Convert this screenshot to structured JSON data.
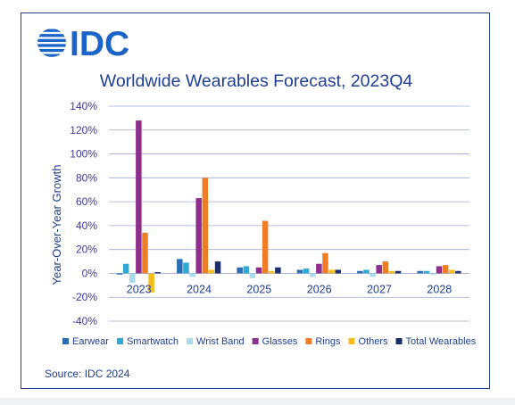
{
  "logo": {
    "text": "IDC"
  },
  "colors": {
    "brand": "#1f3f95",
    "logo_blue": "#1b64c8",
    "axis_text": "#3a3aa0",
    "grid": "#9aa8d8"
  },
  "chart_data": {
    "type": "bar",
    "title": "Worldwide Wearables Forecast, 2023Q4",
    "xlabel": "",
    "ylabel": "Year-Over-Year Growth",
    "ylim": [
      -40,
      140
    ],
    "yticks": [
      -40,
      -20,
      0,
      20,
      40,
      60,
      80,
      100,
      120,
      140
    ],
    "ytick_labels": [
      "-40%",
      "-20%",
      "0%",
      "20%",
      "40%",
      "60%",
      "80%",
      "100%",
      "120%",
      "140%"
    ],
    "grid": true,
    "legend_position": "bottom",
    "categories": [
      "2023",
      "2024",
      "2025",
      "2026",
      "2027",
      "2028"
    ],
    "series": [
      {
        "name": "Earwear",
        "color": "#2a6fb5",
        "values": [
          -1,
          12,
          5,
          3,
          2,
          2
        ]
      },
      {
        "name": "Smartwatch",
        "color": "#2fa9d3",
        "values": [
          8,
          9,
          6,
          4,
          3,
          2
        ]
      },
      {
        "name": "Wrist Band",
        "color": "#a9dbe9",
        "values": [
          -8,
          -3,
          -4,
          -3,
          -3,
          -1
        ]
      },
      {
        "name": "Glasses",
        "color": "#8e2f8e",
        "values": [
          128,
          63,
          5,
          8,
          7,
          6
        ]
      },
      {
        "name": "Rings",
        "color": "#ee7d26",
        "values": [
          34,
          80,
          44,
          17,
          10,
          7
        ]
      },
      {
        "name": "Others",
        "color": "#f6be1a",
        "values": [
          -16,
          3,
          2,
          3,
          2,
          3
        ]
      },
      {
        "name": "Total Wearables",
        "color": "#1b2f6e",
        "values": [
          1,
          10,
          5,
          3,
          2,
          2
        ]
      }
    ]
  },
  "source": "Source: IDC 2024"
}
